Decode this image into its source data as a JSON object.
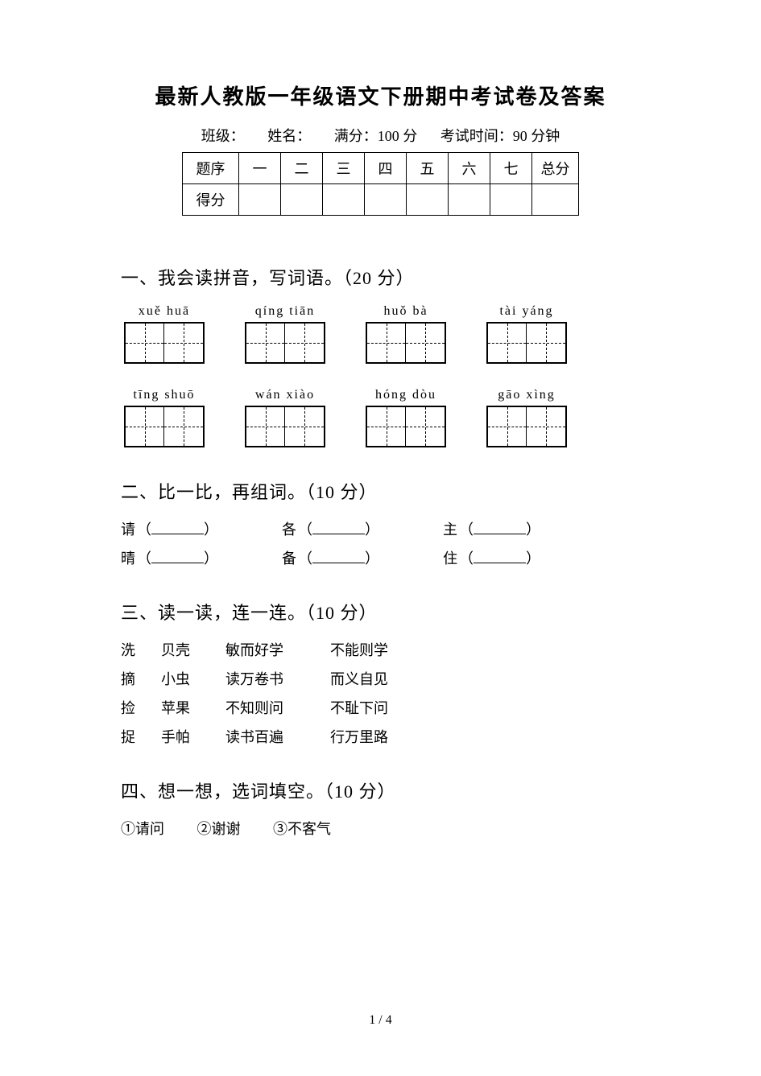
{
  "title": "最新人教版一年级语文下册期中考试卷及答案",
  "info": {
    "class_label": "班级：",
    "name_label": "姓名：",
    "full_score_label": "满分：100 分",
    "time_label": "考试时间：90 分钟"
  },
  "score_table": {
    "row1_label": "题序",
    "cols": [
      "一",
      "二",
      "三",
      "四",
      "五",
      "六",
      "七"
    ],
    "total_label": "总分",
    "row2_label": "得分"
  },
  "section1": {
    "heading": "一、我会读拼音，写词语。（20 分）",
    "row1": [
      {
        "pinyin": "xuě huā"
      },
      {
        "pinyin": "qíng tiān"
      },
      {
        "pinyin": "huǒ bà"
      },
      {
        "pinyin": "tài   yáng"
      }
    ],
    "row2": [
      {
        "pinyin": "tīng  shuō"
      },
      {
        "pinyin": "wán  xiào"
      },
      {
        "pinyin": "hóng   dòu"
      },
      {
        "pinyin": "gāo  xìng"
      }
    ]
  },
  "section2": {
    "heading": "二、比一比，再组词。（10 分）",
    "rows": [
      [
        {
          "char": "请"
        },
        {
          "char": "各"
        },
        {
          "char": "主"
        }
      ],
      [
        {
          "char": "晴"
        },
        {
          "char": "备"
        },
        {
          "char": "住"
        }
      ]
    ]
  },
  "section3": {
    "heading": "三、读一读，连一连。（10 分）",
    "rows": [
      [
        "洗",
        "贝壳",
        "敏而好学",
        "不能则学"
      ],
      [
        "摘",
        "小虫",
        "读万卷书",
        "而义自见"
      ],
      [
        "捡",
        "苹果",
        "不知则问",
        "不耻下问"
      ],
      [
        "捉",
        "手帕",
        "读书百遍",
        "行万里路"
      ]
    ]
  },
  "section4": {
    "heading": "四、想一想，选词填空。（10 分）",
    "options": [
      "①请问",
      "②谢谢",
      "③不客气"
    ]
  },
  "footer": {
    "page": "1 / 4"
  }
}
